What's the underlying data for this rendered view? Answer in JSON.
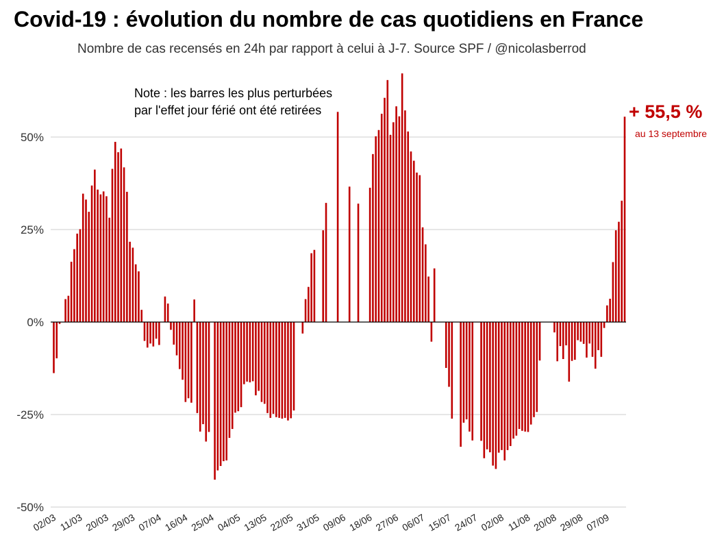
{
  "title": "Covid-19 : évolution du nombre de cas quotidiens en France",
  "subtitle": "Nombre de cas recensés en 24h par rapport à celui à J-7. Source SPF / @nicolasberrod",
  "note": {
    "line1": "Note : les barres les plus perturbées",
    "line2": "par l'effet jour férié ont été retirées"
  },
  "callout": {
    "value": "+ 55,5 %",
    "date": "au 13 septembre"
  },
  "colors": {
    "bar": "#c00000",
    "grid": "#cccccc",
    "axis": "#000000",
    "callout": "#c00000"
  },
  "chart_data": {
    "type": "bar",
    "ylabel": "",
    "xlabel": "",
    "ylim": [
      -50,
      70
    ],
    "yticks": [
      {
        "value": 50,
        "label": "50%"
      },
      {
        "value": 25,
        "label": "25%"
      },
      {
        "value": 0,
        "label": "0%"
      },
      {
        "value": -25,
        "label": "-25%"
      },
      {
        "value": -50,
        "label": "-50%"
      }
    ],
    "x_start": "02/03",
    "x_end": "13/09",
    "xticks": [
      "02/03",
      "11/03",
      "20/03",
      "29/03",
      "07/04",
      "16/04",
      "25/04",
      "04/05",
      "13/05",
      "22/05",
      "31/05",
      "09/06",
      "18/06",
      "27/06",
      "06/07",
      "15/07",
      "24/07",
      "02/08",
      "11/08",
      "20/08",
      "29/08",
      "07/09"
    ],
    "values": [
      -13.8,
      -9.8,
      -0.5,
      null,
      6.2,
      7.1,
      16.3,
      19.7,
      23.9,
      25.1,
      34.7,
      33.1,
      29.8,
      36.9,
      41.2,
      35.8,
      34.5,
      35.3,
      34.0,
      28.2,
      41.4,
      48.7,
      45.9,
      46.9,
      41.8,
      35.2,
      21.7,
      20.1,
      15.6,
      13.7,
      3.3,
      -5.1,
      -6.9,
      -5.8,
      -6.6,
      -4.5,
      -6.2,
      null,
      6.9,
      5.0,
      -2.1,
      -6.1,
      -9.0,
      -12.7,
      -15.6,
      -21.6,
      -20.6,
      -21.8,
      6.1,
      -24.6,
      -29.6,
      -27.6,
      -32.3,
      -29.7,
      null,
      -42.6,
      -40.1,
      -38.9,
      -37.6,
      -37.4,
      -31.3,
      -28.9,
      -24.5,
      -24.1,
      -23.0,
      -16.8,
      -16.1,
      -16.3,
      -16.0,
      -19.8,
      -18.6,
      -21.6,
      -22.1,
      -24.6,
      -25.9,
      -24.8,
      -25.7,
      -25.9,
      -26.1,
      -25.9,
      -26.6,
      -26.0,
      -23.9,
      null,
      null,
      -3.1,
      6.2,
      9.5,
      18.6,
      19.5,
      null,
      null,
      24.8,
      32.2,
      null,
      null,
      null,
      56.8,
      null,
      null,
      null,
      36.6,
      null,
      null,
      32.0,
      null,
      null,
      null,
      36.3,
      45.4,
      50.2,
      51.9,
      56.3,
      60.6,
      65.4,
      50.6,
      54.0,
      58.3,
      55.6,
      67.2,
      57.2,
      51.5,
      46.1,
      43.6,
      40.4,
      39.7,
      25.6,
      21.0,
      12.3,
      -5.3,
      14.5,
      null,
      null,
      null,
      -12.4,
      -17.5,
      -26.1,
      null,
      null,
      -33.7,
      -27.2,
      -26.3,
      -29.6,
      -32.0,
      null,
      null,
      -32.1,
      -36.8,
      -34.4,
      -35.2,
      -38.8,
      -39.7,
      -35.3,
      -34.6,
      -37.4,
      -34.6,
      -33.5,
      -31.5,
      -30.7,
      -28.9,
      -29.4,
      -29.6,
      -29.7,
      -27.7,
      -25.7,
      -24.3,
      -10.4,
      null,
      null,
      null,
      null,
      -2.8,
      -10.6,
      -6.5,
      -10.0,
      -6.3,
      -16.1,
      -10.5,
      -10.2,
      -4.9,
      -5.3,
      -5.9,
      -9.6,
      -5.8,
      -9.4,
      -12.6,
      -7.6,
      -9.4,
      -1.6,
      4.5,
      6.3,
      16.2,
      24.8,
      27.1,
      32.8,
      55.5
    ]
  }
}
